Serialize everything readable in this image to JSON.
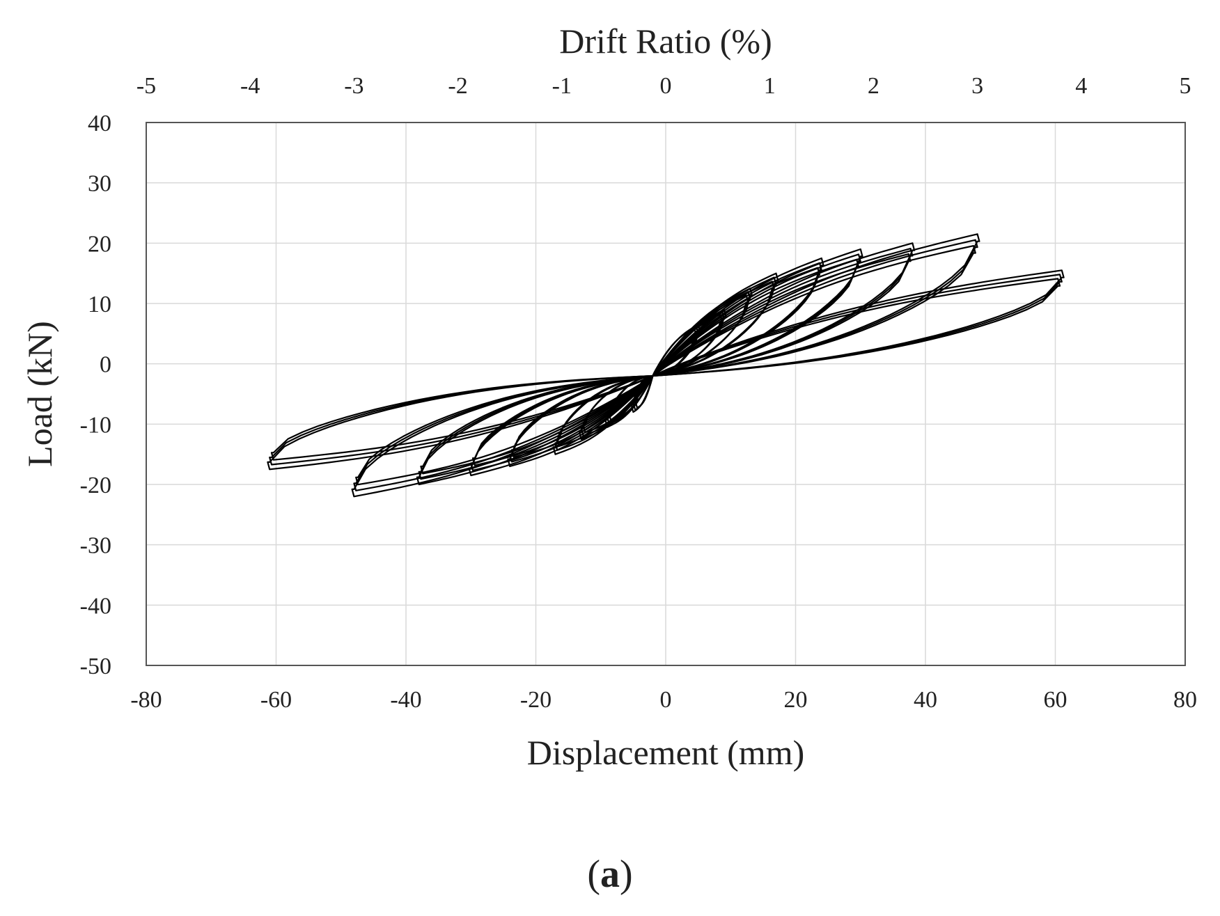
{
  "chart_data": {
    "type": "line",
    "title": "",
    "xlabel": "Displacement (mm)",
    "ylabel": "Load (kN)",
    "x2label": "Drift Ratio (%)",
    "xlim": [
      -80,
      80
    ],
    "ylim": [
      -50,
      40
    ],
    "x2lim": [
      -5,
      5
    ],
    "xticks": [
      -80,
      -60,
      -40,
      -20,
      0,
      20,
      40,
      60,
      80
    ],
    "yticks": [
      40,
      30,
      20,
      10,
      0,
      -10,
      -20,
      -30,
      -40,
      -50
    ],
    "x2ticks": [
      -5,
      -4,
      -3,
      -2,
      -1,
      0,
      1,
      2,
      3,
      4,
      5
    ],
    "grid": true,
    "legend": "none",
    "line_color": "#000000",
    "cycles": [
      {
        "disp": 5,
        "pos_peak": 6.5,
        "neg_peak": -8,
        "repeats": 3
      },
      {
        "disp": 9,
        "pos_peak": 9,
        "neg_peak": -10.5,
        "repeats": 3
      },
      {
        "disp": 13,
        "pos_peak": 12.5,
        "neg_peak": -12.5,
        "repeats": 3
      },
      {
        "disp": 17,
        "pos_peak": 15,
        "neg_peak": -15,
        "repeats": 3
      },
      {
        "disp": 24,
        "pos_peak": 17.5,
        "neg_peak": -17,
        "repeats": 3
      },
      {
        "disp": 30,
        "pos_peak": 19,
        "neg_peak": -18.5,
        "repeats": 3
      },
      {
        "disp": 38,
        "pos_peak": 20,
        "neg_peak": -20,
        "repeats": 3
      },
      {
        "disp": 48,
        "pos_peak": 21.5,
        "neg_peak": -22,
        "repeats": 3
      },
      {
        "disp": 61,
        "pos_peak": 15.5,
        "neg_peak": -17.5,
        "repeats": 3
      }
    ]
  },
  "caption": {
    "open": "(",
    "letter": "a",
    "close": ")"
  }
}
